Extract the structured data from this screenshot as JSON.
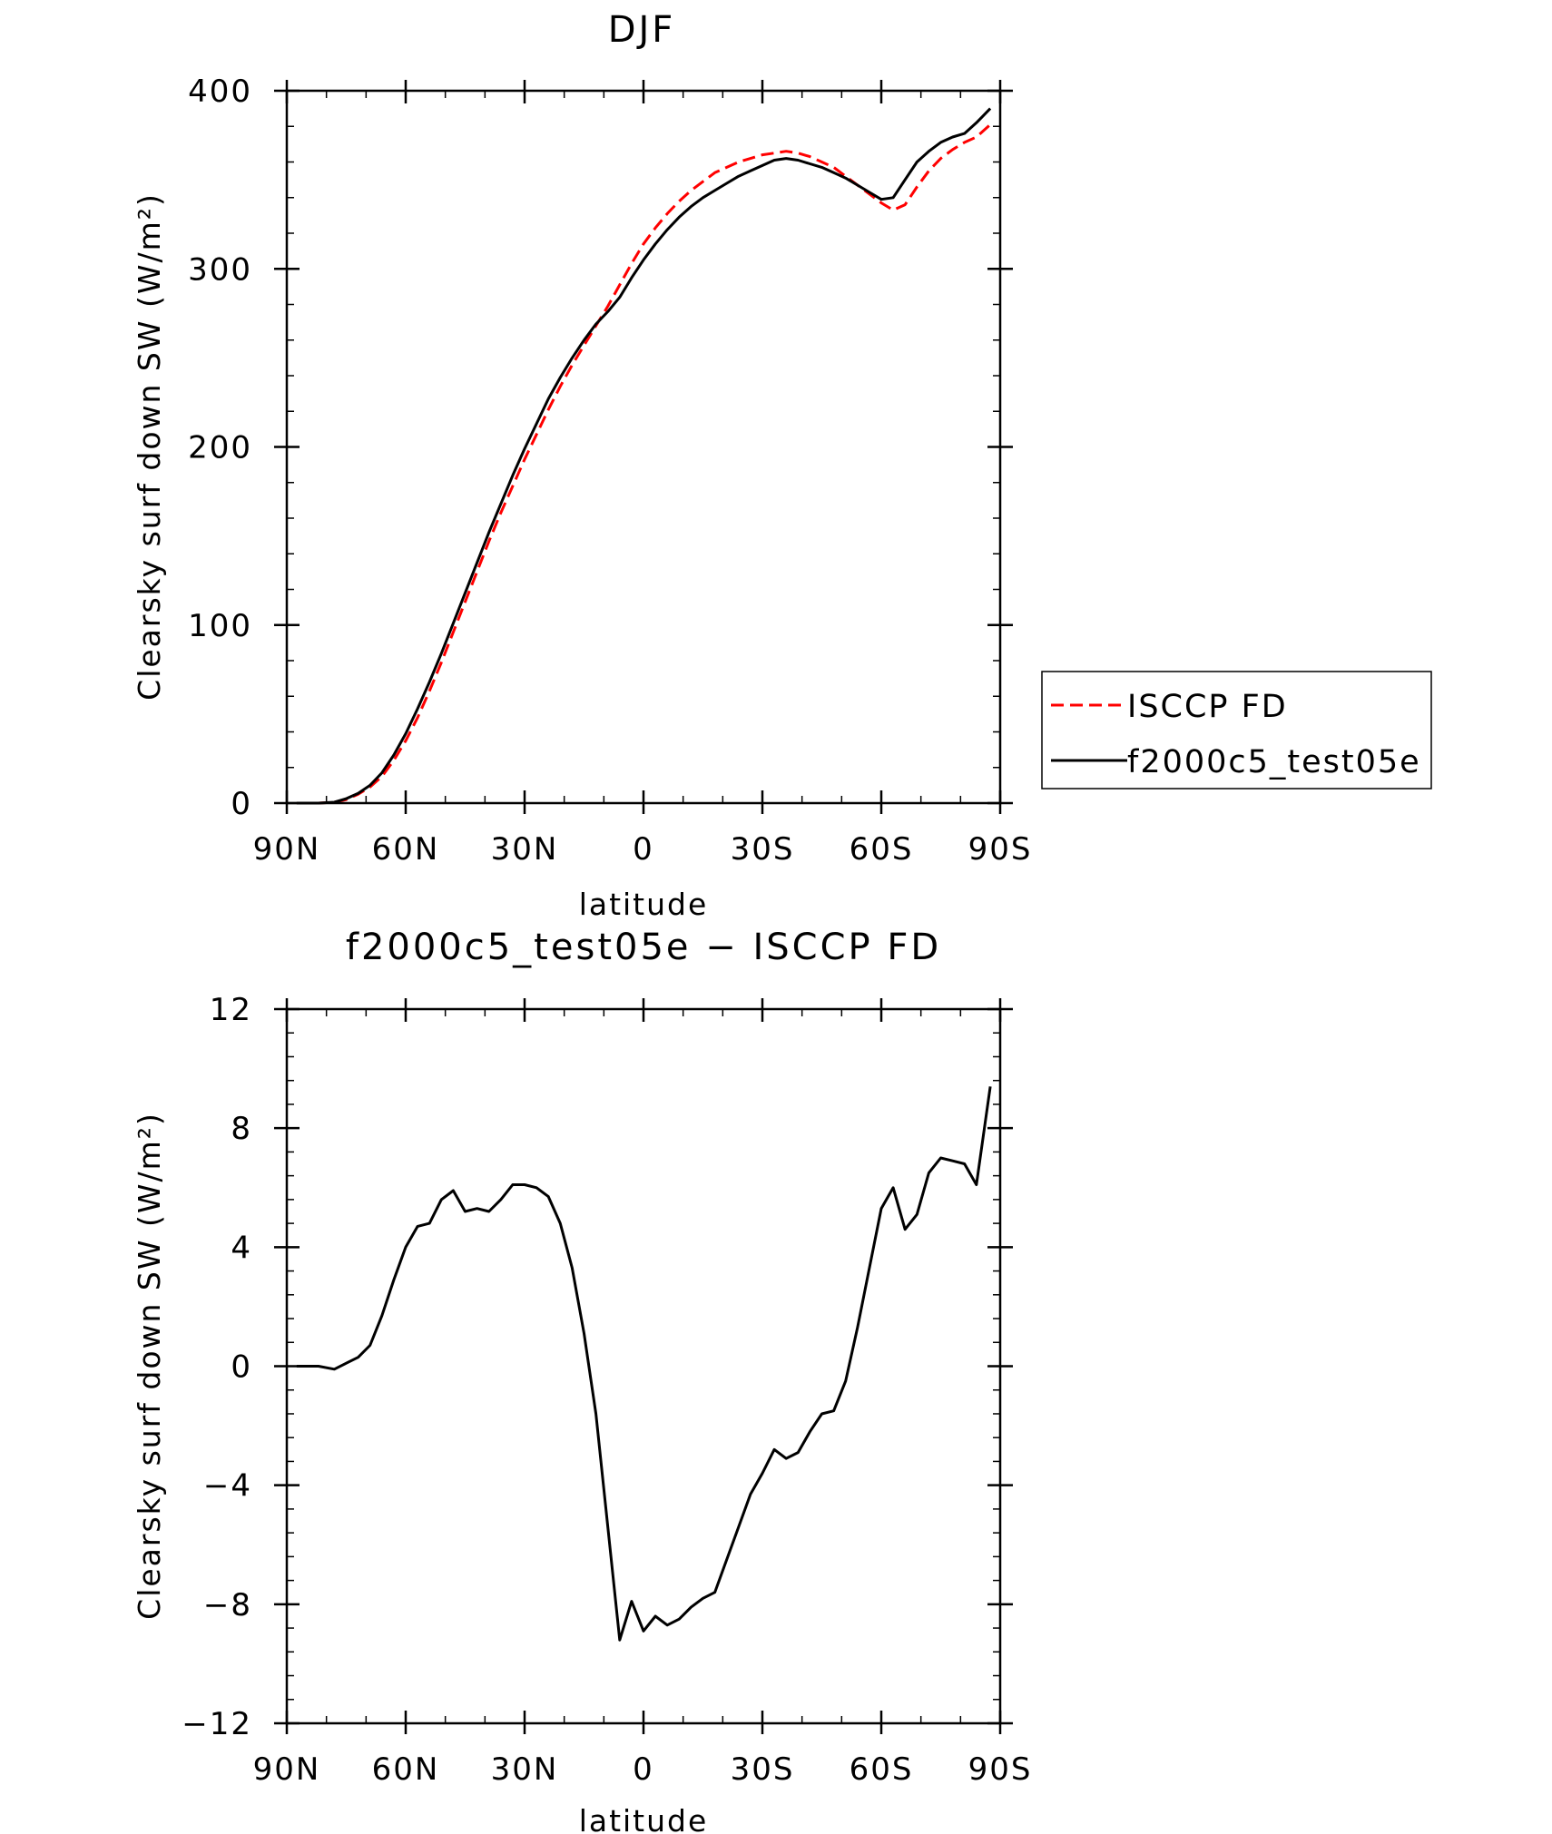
{
  "chart_data": [
    {
      "type": "line",
      "title": "DJF",
      "xlabel": "latitude",
      "ylabel": "Clearsky surf down SW (W/m²)",
      "xlim": [
        -90,
        90
      ],
      "ylim": [
        0,
        400
      ],
      "xticks": [
        -90,
        -60,
        -30,
        0,
        30,
        60,
        90
      ],
      "xtick_labels": [
        "90N",
        "60N",
        "30N",
        "0",
        "30S",
        "60S",
        "90S"
      ],
      "yticks": [
        0,
        100,
        200,
        300,
        400
      ],
      "ytick_labels": [
        "0",
        "100",
        "200",
        "300",
        "400"
      ],
      "legend": {
        "position": "right",
        "entries": [
          "ISCCP FD",
          "f2000c5_test05e"
        ]
      },
      "series": [
        {
          "name": "ISCCP FD",
          "color": "#ff0000",
          "dash": "dashed",
          "x": [
            -87.5,
            -82,
            -78,
            -75,
            -72,
            -69,
            -66,
            -63,
            -60,
            -57,
            -54,
            -51,
            -48,
            -45,
            -42,
            -39,
            -36,
            -33,
            -30,
            -27,
            -24,
            -21,
            -18,
            -15,
            -12,
            -9,
            -6,
            -3,
            0,
            3,
            6,
            9,
            12,
            15,
            18,
            21,
            24,
            27,
            30,
            33,
            36,
            39,
            42,
            45,
            48,
            51,
            54,
            57,
            60,
            63,
            66,
            69,
            72,
            75,
            78,
            81,
            84,
            87.5
          ],
          "y": [
            0,
            0,
            0.5,
            2,
            5,
            9,
            15,
            24,
            35,
            48,
            63,
            79,
            96,
            113,
            130,
            147,
            163,
            178,
            193,
            207,
            221,
            234,
            246,
            257,
            268,
            279,
            291,
            303,
            314,
            323,
            331,
            338,
            344,
            349,
            354,
            357,
            360,
            362,
            364,
            365,
            366,
            365,
            363,
            360,
            357,
            352,
            347,
            342,
            337,
            333,
            336,
            346,
            355,
            362,
            367,
            371,
            374,
            381
          ]
        },
        {
          "name": "f2000c5_test05e",
          "color": "#000000",
          "dash": "solid",
          "x": [
            -87.5,
            -82,
            -78,
            -75,
            -72,
            -69,
            -66,
            -63,
            -60,
            -57,
            -54,
            -51,
            -48,
            -45,
            -42,
            -39,
            -36,
            -33,
            -30,
            -27,
            -24,
            -21,
            -18,
            -15,
            -12,
            -9,
            -6,
            -3,
            0,
            3,
            6,
            9,
            12,
            15,
            18,
            21,
            24,
            27,
            30,
            33,
            36,
            39,
            42,
            45,
            48,
            51,
            54,
            57,
            60,
            63,
            66,
            69,
            72,
            75,
            78,
            81,
            84,
            87.5
          ],
          "y": [
            0,
            0,
            0.5,
            2.5,
            5.5,
            10,
            17,
            27,
            39,
            53,
            68,
            84,
            101,
            118,
            135,
            152,
            168,
            184,
            199,
            213,
            227,
            239,
            250,
            260,
            269,
            276,
            284,
            295,
            305,
            314,
            322,
            329,
            335,
            340,
            344,
            348,
            352,
            355,
            358,
            361,
            362,
            361,
            359,
            357,
            354,
            351,
            347,
            343,
            339,
            340,
            350,
            360,
            366,
            371,
            374,
            376,
            382,
            390
          ]
        }
      ]
    },
    {
      "type": "line",
      "title": "f2000c5_test05e − ISCCP FD",
      "xlabel": "latitude",
      "ylabel": "Clearsky surf down SW (W/m²)",
      "xlim": [
        -90,
        90
      ],
      "ylim": [
        -12,
        12
      ],
      "xticks": [
        -90,
        -60,
        -30,
        0,
        30,
        60,
        90
      ],
      "xtick_labels": [
        "90N",
        "60N",
        "30N",
        "0",
        "30S",
        "60S",
        "90S"
      ],
      "yticks": [
        -12,
        -8,
        -4,
        0,
        4,
        8,
        12
      ],
      "ytick_labels": [
        "−12",
        "−8",
        "−4",
        "0",
        "4",
        "8",
        "12"
      ],
      "series": [
        {
          "color": "#000000",
          "dash": "solid",
          "x": [
            -87.5,
            -82,
            -78,
            -75,
            -72,
            -69,
            -66,
            -63,
            -60,
            -57,
            -54,
            -51,
            -48,
            -45,
            -42,
            -39,
            -36,
            -33,
            -30,
            -27,
            -24,
            -21,
            -18,
            -15,
            -12,
            -9,
            -6,
            -3,
            0,
            3,
            6,
            9,
            12,
            15,
            18,
            21,
            24,
            27,
            30,
            33,
            36,
            39,
            42,
            45,
            48,
            51,
            54,
            57,
            60,
            63,
            66,
            69,
            72,
            75,
            78,
            81,
            84,
            87.5
          ],
          "y": [
            0,
            0,
            -0.1,
            0.1,
            0.3,
            0.7,
            1.7,
            2.9,
            4.0,
            4.7,
            4.8,
            5.6,
            5.9,
            5.2,
            5.3,
            5.2,
            5.6,
            6.1,
            6.1,
            6.0,
            5.7,
            4.8,
            3.3,
            1.1,
            -1.6,
            -5.4,
            -9.2,
            -7.9,
            -8.9,
            -8.4,
            -8.7,
            -8.5,
            -8.1,
            -7.8,
            -7.6,
            -6.5,
            -5.4,
            -4.3,
            -3.6,
            -2.8,
            -3.1,
            -2.9,
            -2.2,
            -1.6,
            -1.5,
            -0.5,
            1.3,
            3.3,
            5.3,
            6.0,
            4.6,
            5.1,
            6.5,
            7.0,
            6.9,
            6.8,
            6.1,
            9.4
          ]
        }
      ]
    }
  ]
}
